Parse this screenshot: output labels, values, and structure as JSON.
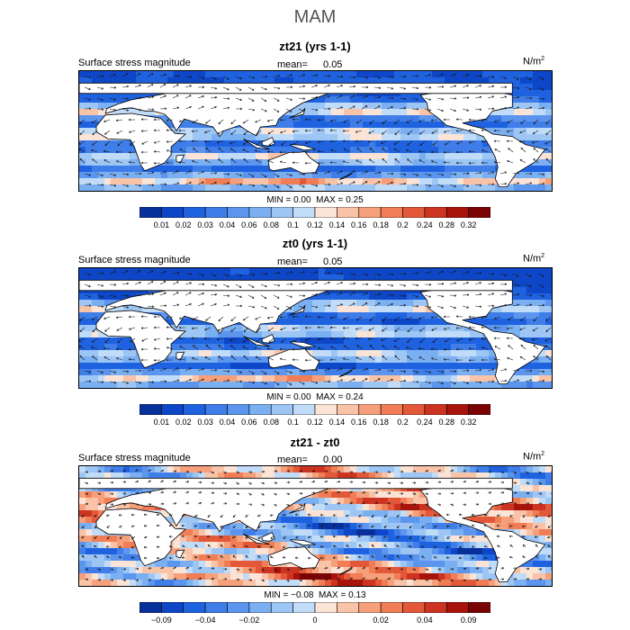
{
  "figure": {
    "title": "MAM",
    "palette_seq": [
      "#08309b",
      "#0d47c8",
      "#1f62e0",
      "#3f7ee8",
      "#5b95ee",
      "#7aaff2",
      "#9dc6f5",
      "#c1dcf8",
      "#fbe3d6",
      "#f9c3a8",
      "#f6a07b",
      "#f07d55",
      "#e4583a",
      "#cc3320",
      "#a8140c",
      "#7a0403"
    ],
    "palette_div": [
      "#08309b",
      "#0d47c8",
      "#1f62e0",
      "#3f7ee8",
      "#5b95ee",
      "#7aaff2",
      "#9dc6f5",
      "#c1dcf8",
      "#fbe3d6",
      "#f9c3a8",
      "#f6a07b",
      "#f07d55",
      "#e4583a",
      "#cc3320",
      "#a8140c",
      "#7a0403"
    ]
  },
  "chart_data": [
    {
      "type": "heatmap",
      "title": "zt21 (yrs 1-1)",
      "variable_label": "Surface stress magnitude",
      "mean_label": "mean=",
      "mean_value": "0.05",
      "units": "N/m",
      "units_sup": "2",
      "min_label": "MIN =",
      "min_value": "0.00",
      "max_label": "MAX =",
      "max_value": "0.25",
      "colorbar_ticks": [
        "0.01",
        "0.02",
        "0.03",
        "0.04",
        "0.06",
        "0.08",
        "0.1",
        "0.12",
        "0.14",
        "0.16",
        "0.18",
        "0.2",
        "0.24",
        "0.28",
        "0.32"
      ]
    },
    {
      "type": "heatmap",
      "title": "zt0 (yrs 1-1)",
      "variable_label": "Surface stress magnitude",
      "mean_label": "mean=",
      "mean_value": "0.05",
      "units": "N/m",
      "units_sup": "2",
      "min_label": "MIN =",
      "min_value": "0.00",
      "max_label": "MAX =",
      "max_value": "0.24",
      "colorbar_ticks": [
        "0.01",
        "0.02",
        "0.03",
        "0.04",
        "0.06",
        "0.08",
        "0.1",
        "0.12",
        "0.14",
        "0.16",
        "0.18",
        "0.2",
        "0.24",
        "0.28",
        "0.32"
      ]
    },
    {
      "type": "heatmap",
      "title": "zt21 - zt0",
      "variable_label": "Surface stress magnitude",
      "mean_label": "mean=",
      "mean_value": "0.00",
      "units": "N/m",
      "units_sup": "2",
      "min_label": "MIN =",
      "min_value": "−0.08",
      "max_label": "MAX =",
      "max_value": "0.13",
      "colorbar_ticks": [
        "−0.09",
        "−0.04",
        "−0.02",
        "0",
        "0.02",
        "0.04",
        "0.09"
      ]
    }
  ]
}
